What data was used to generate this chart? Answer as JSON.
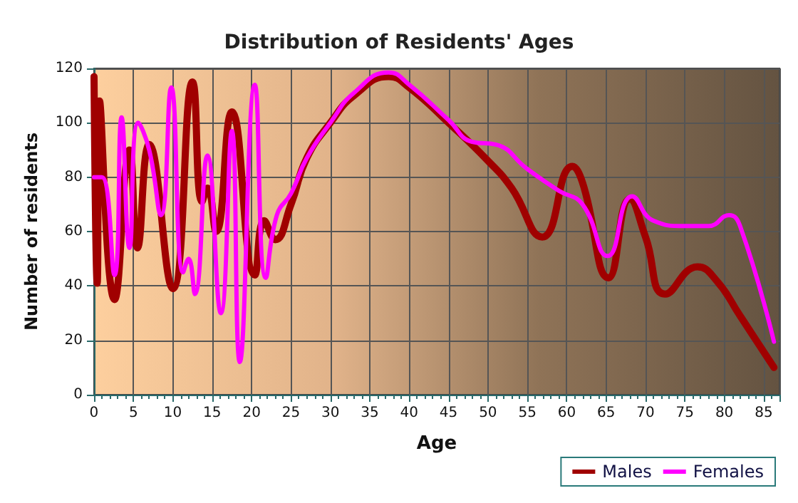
{
  "chart_data": {
    "type": "line",
    "title": "Distribution of Residents' Ages",
    "xlabel": "Age",
    "ylabel": "Number of residents",
    "xlim": [
      0,
      87
    ],
    "xticks": [
      0,
      5,
      10,
      15,
      20,
      25,
      30,
      35,
      40,
      45,
      50,
      55,
      60,
      65,
      70,
      75,
      80,
      85
    ],
    "ylim": [
      0,
      120
    ],
    "yticks": [
      0,
      20,
      40,
      60,
      80,
      100,
      120
    ],
    "grid": true,
    "legend": "bottom right",
    "marker": "none",
    "line_style": "solid",
    "series": [
      {
        "name": "Males",
        "color": "#a00000",
        "x": [
          0,
          0.4,
          0.7,
          2.6,
          4.5,
          5.5,
          7,
          10,
          12.5,
          13.7,
          14.4,
          15.5,
          17.5,
          20.4,
          21.6,
          23,
          25,
          27,
          30,
          33,
          37.4,
          40,
          45,
          50,
          53,
          56.9,
          60.7,
          62,
          65.3,
          68,
          70,
          72.5,
          76.6,
          79,
          82,
          86.3
        ],
        "values": [
          117,
          41,
          108,
          35,
          90,
          54,
          92,
          39,
          115,
          71,
          76,
          60,
          104,
          44,
          64,
          57,
          70,
          87,
          100,
          110,
          117,
          113,
          100,
          86,
          76,
          58,
          84,
          78,
          43,
          72,
          58,
          37,
          47,
          42,
          29,
          10
        ]
      },
      {
        "name": "Females",
        "color": "#ff00ff",
        "x": [
          0,
          1,
          2.6,
          3.5,
          4.5,
          5.6,
          7,
          8.5,
          9.8,
          11.3,
          12,
          12.8,
          14.4,
          16.1,
          17.5,
          18.5,
          20.4,
          21.8,
          23.2,
          25,
          27,
          30,
          33,
          37.4,
          40,
          45,
          48,
          51,
          55,
          59,
          62,
          65.2,
          68.3,
          71,
          75,
          78,
          80.6,
          82,
          86.3
        ],
        "values": [
          80,
          80,
          44,
          102,
          54,
          100,
          90,
          66,
          113,
          45,
          50,
          37,
          88,
          30,
          97,
          12,
          114,
          43,
          66,
          74,
          87,
          100,
          111,
          118.5,
          114,
          101,
          93,
          92,
          83,
          75,
          70,
          51,
          73,
          64,
          62,
          62,
          66,
          62,
          19.5
        ]
      }
    ]
  }
}
